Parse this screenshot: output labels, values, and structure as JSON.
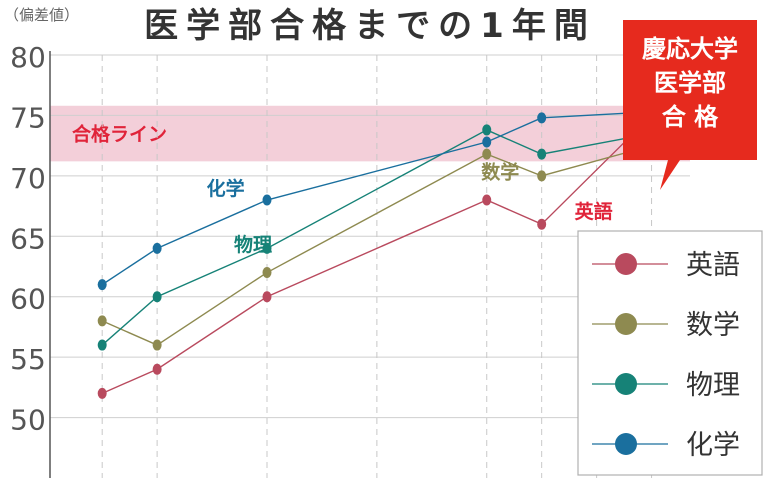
{
  "title": "医学部合格までの1年間",
  "unit_label": "（偏差値）",
  "goal_badge": {
    "lines": [
      "慶応大学",
      "医学部",
      "合 格"
    ],
    "color": "#e62a1e"
  },
  "pass_band": {
    "label": "合格ライン",
    "range": [
      71.2,
      75.8
    ],
    "color": "#f3cfd9",
    "label_color": "#e0243a"
  },
  "chart_data": {
    "type": "line",
    "x": [
      1,
      2,
      4,
      8,
      9,
      11
    ],
    "xlim": [
      0.05,
      11.7
    ],
    "ylim": [
      45,
      80
    ],
    "yticks": [
      50,
      55,
      60,
      65,
      70,
      75,
      80
    ],
    "vgrid": [
      1,
      2,
      4,
      6,
      8,
      9,
      10,
      11
    ],
    "series": [
      {
        "name": "英語",
        "color": "#b94a5e",
        "values": [
          52,
          54,
          60,
          68,
          66,
          75
        ]
      },
      {
        "name": "数学",
        "color": "#8e8a50",
        "values": [
          58,
          56,
          62,
          71.8,
          70,
          72.5
        ]
      },
      {
        "name": "物理",
        "color": "#168277",
        "values": [
          56,
          60,
          64,
          73.8,
          71.8,
          73.5
        ]
      },
      {
        "name": "化学",
        "color": "#1a6f9e",
        "values": [
          61,
          64,
          68,
          72.8,
          74.8,
          75.3
        ]
      }
    ],
    "series_labels": [
      {
        "text": "化学",
        "x": 2.9,
        "y": 68.4,
        "color": "#1a6f9e"
      },
      {
        "text": "物理",
        "x": 3.4,
        "y": 63.8,
        "color": "#168277"
      },
      {
        "text": "数学",
        "x": 7.9,
        "y": 69.8,
        "color": "#8e8a50"
      },
      {
        "text": "英語",
        "x": 9.6,
        "y": 66.5,
        "color": "#e0243a"
      }
    ]
  }
}
